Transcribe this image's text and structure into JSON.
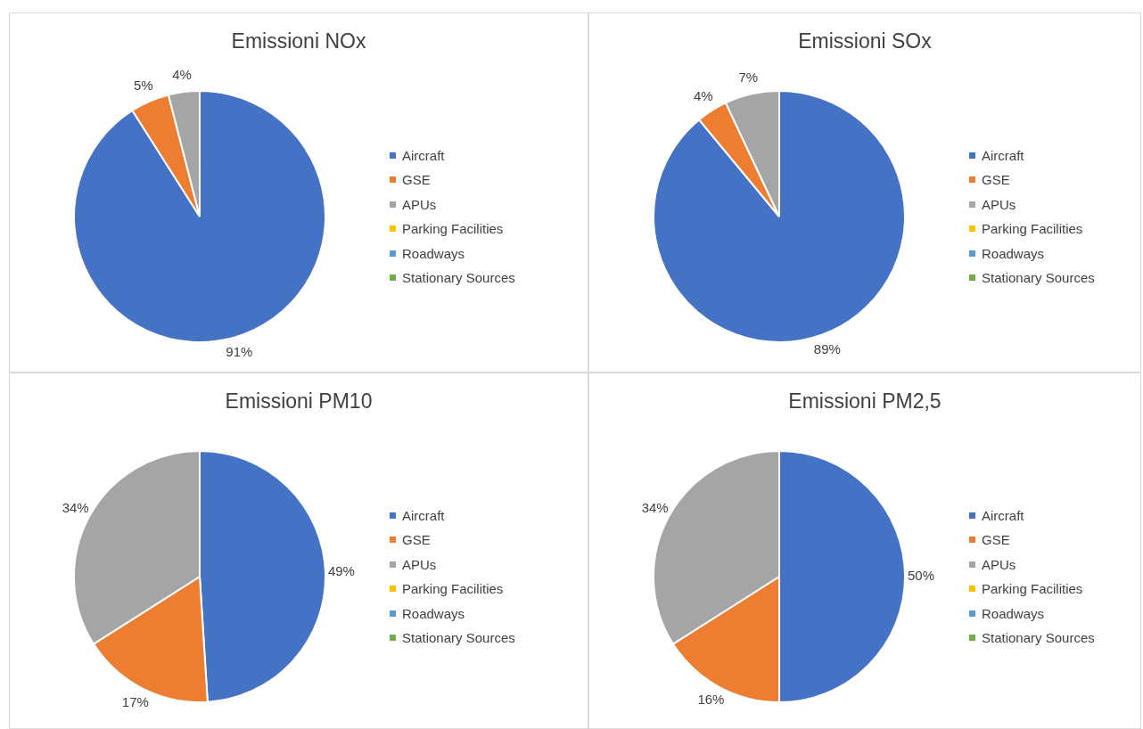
{
  "chart_data": [
    {
      "type": "pie",
      "title": "Emissioni NOx",
      "categories": [
        "Aircraft",
        "GSE",
        "APUs",
        "Parking Facilities",
        "Roadways",
        "Stationary Sources"
      ],
      "values": [
        91,
        5,
        4,
        0,
        0,
        0
      ],
      "value_labels": [
        "91%",
        "5%",
        "4%",
        null,
        null,
        null
      ],
      "colors": [
        "#4472c4",
        "#ed7d31",
        "#a5a5a5",
        "#ffc000",
        "#5b9bd5",
        "#70ad47"
      ],
      "legend": "right"
    },
    {
      "type": "pie",
      "title": "Emissioni SOx",
      "categories": [
        "Aircraft",
        "GSE",
        "APUs",
        "Parking Facilities",
        "Roadways",
        "Stationary Sources"
      ],
      "values": [
        89,
        4,
        7,
        0,
        0,
        0
      ],
      "value_labels": [
        "89%",
        "4%",
        "7%",
        null,
        null,
        null
      ],
      "colors": [
        "#4472c4",
        "#ed7d31",
        "#a5a5a5",
        "#ffc000",
        "#5b9bd5",
        "#70ad47"
      ],
      "legend": "right"
    },
    {
      "type": "pie",
      "title": "Emissioni PM10",
      "categories": [
        "Aircraft",
        "GSE",
        "APUs",
        "Parking Facilities",
        "Roadways",
        "Stationary Sources"
      ],
      "values": [
        49,
        17,
        34,
        0,
        0,
        0
      ],
      "value_labels": [
        "49%",
        "17%",
        "34%",
        null,
        null,
        null
      ],
      "colors": [
        "#4472c4",
        "#ed7d31",
        "#a5a5a5",
        "#ffc000",
        "#5b9bd5",
        "#70ad47"
      ],
      "legend": "right"
    },
    {
      "type": "pie",
      "title": "Emissioni PM2,5",
      "categories": [
        "Aircraft",
        "GSE",
        "APUs",
        "Parking Facilities",
        "Roadways",
        "Stationary Sources"
      ],
      "values": [
        50,
        16,
        34,
        0,
        0,
        0
      ],
      "value_labels": [
        "50%",
        "16%",
        "34%",
        null,
        null,
        null
      ],
      "colors": [
        "#4472c4",
        "#ed7d31",
        "#a5a5a5",
        "#ffc000",
        "#5b9bd5",
        "#70ad47"
      ],
      "legend": "right"
    }
  ]
}
